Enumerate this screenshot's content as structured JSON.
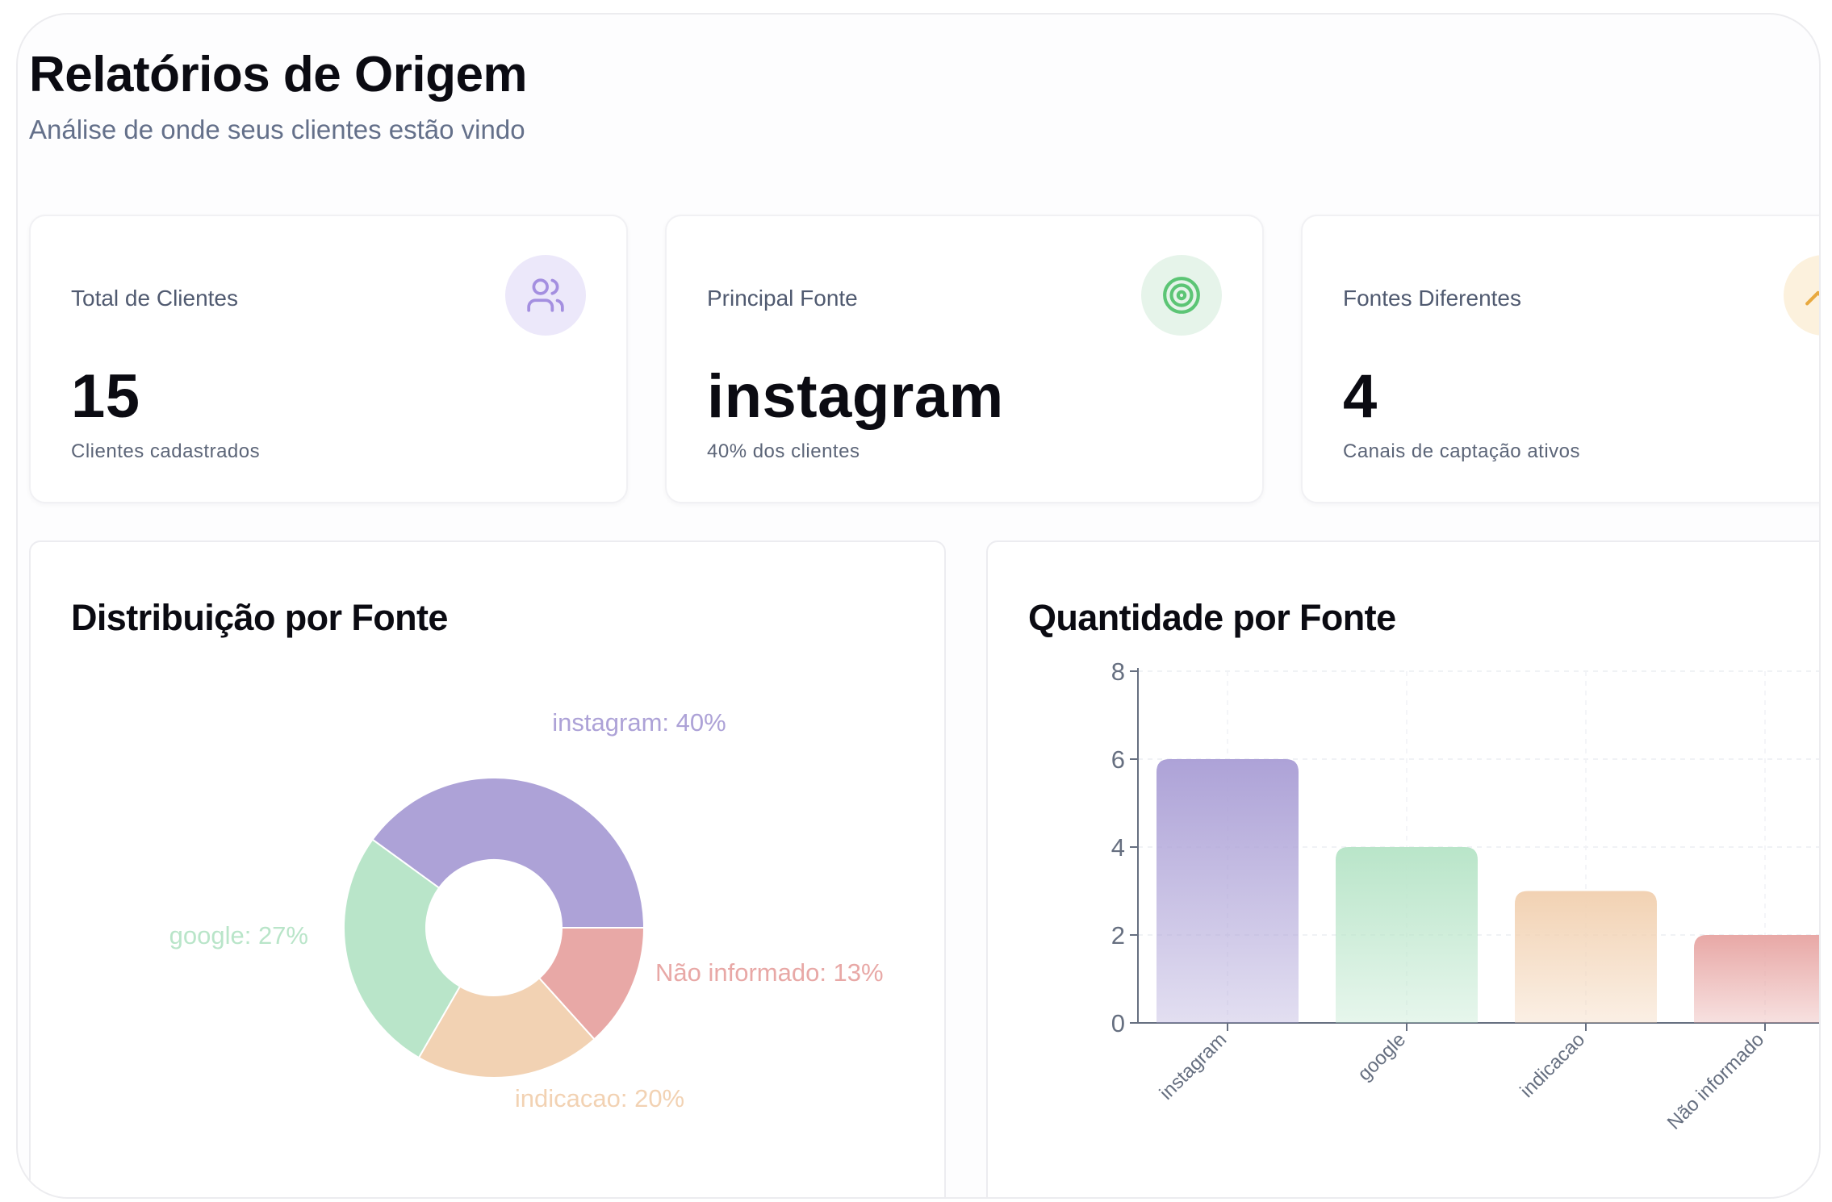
{
  "header": {
    "title": "Relatórios de Origem",
    "subtitle": "Análise de onde seus clientes estão vindo"
  },
  "stats": [
    {
      "label": "Total de Clientes",
      "value": "15",
      "sub": "Clientes cadastrados",
      "icon": "users-icon",
      "icon_bg": "#ece8fa",
      "icon_color": "#a48fe0"
    },
    {
      "label": "Principal Fonte",
      "value": "instagram",
      "sub": "40% dos clientes",
      "icon": "target-icon",
      "icon_bg": "#e6f4ea",
      "icon_color": "#5cc575"
    },
    {
      "label": "Fontes Diferentes",
      "value": "4",
      "sub": "Canais de captação ativos",
      "icon": "trending-up-icon",
      "icon_bg": "#fcf1dd",
      "icon_color": "#e8a93f"
    }
  ],
  "charts": {
    "pie_title": "Distribuição por Fonte",
    "bar_title": "Quantidade por Fonte"
  },
  "chart_data": [
    {
      "type": "pie",
      "title": "Distribuição por Fonte",
      "donut": true,
      "categories": [
        "instagram",
        "google",
        "indicacao",
        "Não informado"
      ],
      "values": [
        6,
        4,
        3,
        2
      ],
      "labels": [
        "instagram: 40%",
        "google: 27%",
        "indicacao: 20%",
        "Não informado: 13%"
      ],
      "colors": [
        "#ada2d7",
        "#b9e5c9",
        "#f2d2b3",
        "#e8a8a6"
      ]
    },
    {
      "type": "bar",
      "title": "Quantidade por Fonte",
      "categories": [
        "instagram",
        "google",
        "indicacao",
        "Não informado"
      ],
      "values": [
        6,
        4,
        3,
        2
      ],
      "ylim": [
        0,
        8
      ],
      "yticks": [
        0,
        2,
        4,
        6,
        8
      ],
      "grid": true,
      "colors": [
        "#ada2d7",
        "#b9e5c9",
        "#f2d2b3",
        "#e8a8a6"
      ]
    }
  ]
}
